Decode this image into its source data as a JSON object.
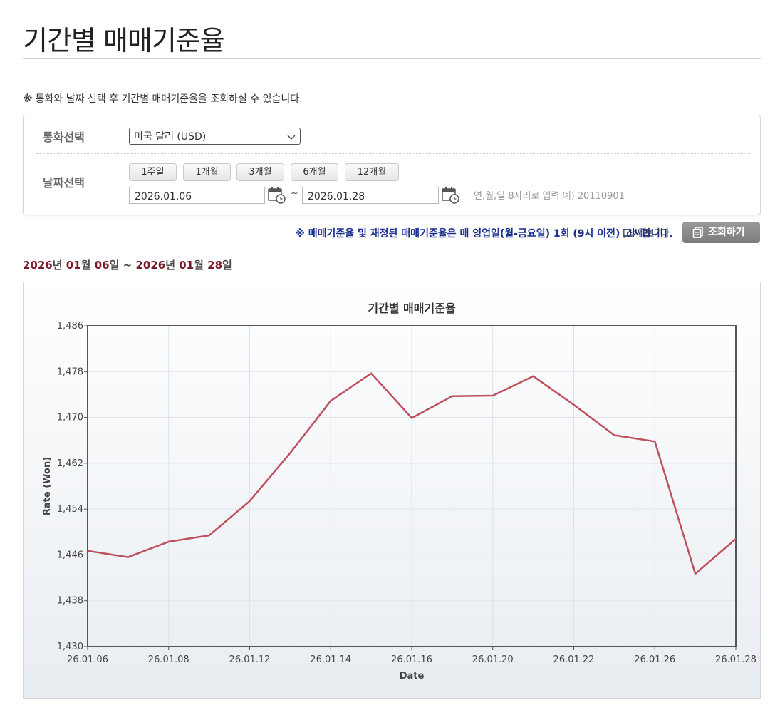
{
  "header": {
    "title": "기간별 매매기준율"
  },
  "notice": {
    "mark": "※",
    "text": "통화와 날짜 선택 후 기간별 매매기준율을 조회하실 수 있습니다."
  },
  "search": {
    "currency_label": "통화선택",
    "currency_value": "미국 달러 (USD)",
    "date_label": "날짜선택",
    "periods": [
      "1주일",
      "1개월",
      "3개월",
      "6개월",
      "12개월"
    ],
    "start_date": "2026.01.06",
    "end_date": "2026.01.28",
    "tilde": "~",
    "date_hint": "연,월,일 8자리로 입력 예) 20110901"
  },
  "announcement": "※ 매매기준율 및 재정된 매매기준율은 매 영업일(월-금요일) 1회 (9시 이전) 고시합니다.",
  "detail_link": "[상세보기]",
  "query_button": "조회하기",
  "range": {
    "y1": "2026",
    "u1": "년",
    "m1": "01",
    "u2": "월",
    "d1": "06",
    "u3": "일",
    "sep": "~",
    "y2": "2026",
    "u4": "년",
    "m2": "01",
    "u5": "월",
    "d2": "28",
    "u6": "일"
  },
  "colors": {
    "line": "#c0505e",
    "accent": "#7a1c2a",
    "announce": "#1a2f8f"
  },
  "chart_data": {
    "type": "line",
    "title": "기간별 매매기준율",
    "xlabel": "Date",
    "ylabel": "Rate (Won)",
    "grid": true,
    "ylim": [
      1430,
      1486
    ],
    "yticks": [
      1430,
      1438,
      1446,
      1454,
      1462,
      1470,
      1478,
      1486
    ],
    "ytick_labels": [
      "1,430",
      "1,438",
      "1,446",
      "1,454",
      "1,462",
      "1,470",
      "1,478",
      "1,486"
    ],
    "xtick_labels": [
      "26.01.06",
      "26.01.08",
      "26.01.12",
      "26.01.14",
      "26.01.16",
      "26.01.20",
      "26.01.22",
      "26.01.26",
      "26.01.28"
    ],
    "x": [
      "26.01.06",
      "26.01.07",
      "26.01.08",
      "26.01.09",
      "26.01.12",
      "26.01.13",
      "26.01.14",
      "26.01.15",
      "26.01.16",
      "26.01.19",
      "26.01.20",
      "26.01.21",
      "26.01.22",
      "26.01.23",
      "26.01.26",
      "26.01.27",
      "26.01.28"
    ],
    "values": [
      1446.7,
      1445.6,
      1448.3,
      1449.4,
      1455.4,
      1463.8,
      1472.9,
      1477.7,
      1469.9,
      1473.7,
      1473.8,
      1477.2,
      1472.2,
      1466.9,
      1465.8,
      1442.7,
      1448.8
    ]
  }
}
